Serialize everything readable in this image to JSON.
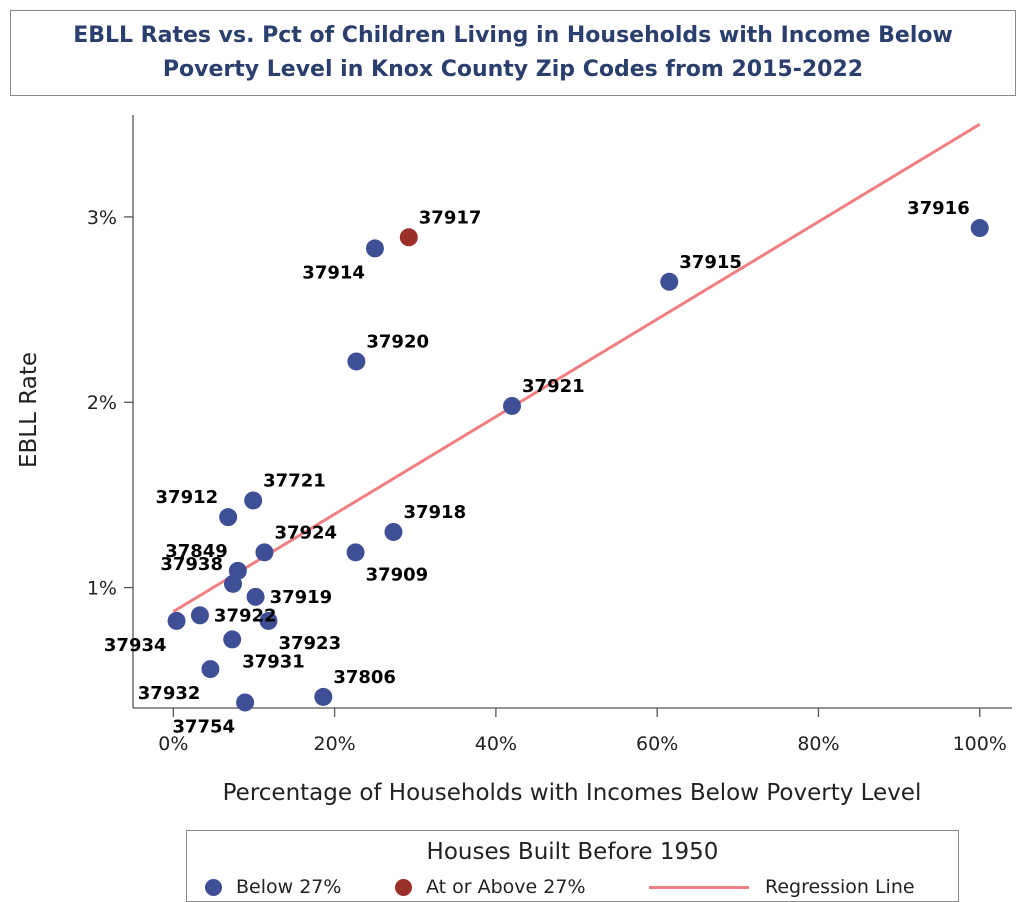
{
  "title": "EBLL Rates vs. Pct of Children Living in Households with Income Below Poverty Level in Knox County Zip Codes from 2015-2022",
  "colors": {
    "below": "#3f4f96",
    "above": "#9b302a",
    "regression": "#f08080",
    "title": "#2b3f6e"
  },
  "legend": {
    "title": "Houses Built Before 1950",
    "below_label": "Below 27%",
    "above_label": "At or Above 27%",
    "regression_label": "Regression Line"
  },
  "chart_data": {
    "type": "scatter",
    "xlabel": "Percentage of Households with Incomes Below Poverty Level",
    "ylabel": "EBLL Rate",
    "xlim": [
      -5,
      104
    ],
    "ylim": [
      0.35,
      3.55
    ],
    "xticks": [
      0,
      20,
      40,
      60,
      80,
      100
    ],
    "xtick_labels": [
      "0%",
      "20%",
      "40%",
      "60%",
      "80%",
      "100%"
    ],
    "yticks": [
      1,
      2,
      3
    ],
    "ytick_labels": [
      "1%",
      "2%",
      "3%"
    ],
    "series": [
      {
        "name": "Below 27%",
        "color": "#3f4f96",
        "points": [
          {
            "zip": "37916",
            "x": 100.0,
            "y": 2.94,
            "pos": "upper-left"
          },
          {
            "zip": "37915",
            "x": 61.5,
            "y": 2.65,
            "pos": "upper-right"
          },
          {
            "zip": "37914",
            "x": 25.0,
            "y": 2.83,
            "pos": "lower-left"
          },
          {
            "zip": "37920",
            "x": 22.7,
            "y": 2.22,
            "pos": "upper-right"
          },
          {
            "zip": "37921",
            "x": 42.0,
            "y": 1.98,
            "pos": "upper-right"
          },
          {
            "zip": "37912",
            "x": 6.8,
            "y": 1.38,
            "pos": "upper-left"
          },
          {
            "zip": "37721",
            "x": 9.9,
            "y": 1.47,
            "pos": "upper-right"
          },
          {
            "zip": "37918",
            "x": 27.3,
            "y": 1.3,
            "pos": "upper-right"
          },
          {
            "zip": "37924",
            "x": 11.3,
            "y": 1.19,
            "pos": "upper-right"
          },
          {
            "zip": "37909",
            "x": 22.6,
            "y": 1.19,
            "pos": "lower-right"
          },
          {
            "zip": "37849",
            "x": 8.0,
            "y": 1.09,
            "pos": "upper-left"
          },
          {
            "zip": "37938",
            "x": 7.4,
            "y": 1.02,
            "pos": "upper-left"
          },
          {
            "zip": "37919",
            "x": 10.2,
            "y": 0.95,
            "pos": "right"
          },
          {
            "zip": "37922",
            "x": 3.3,
            "y": 0.85,
            "pos": "right"
          },
          {
            "zip": "37934",
            "x": 0.4,
            "y": 0.82,
            "pos": "lower-left"
          },
          {
            "zip": "37923",
            "x": 11.8,
            "y": 0.82,
            "pos": "lower-right"
          },
          {
            "zip": "37931",
            "x": 7.3,
            "y": 0.72,
            "pos": "lower-right"
          },
          {
            "zip": "37932",
            "x": 4.6,
            "y": 0.56,
            "pos": "lower-left"
          },
          {
            "zip": "37806",
            "x": 18.6,
            "y": 0.41,
            "pos": "upper-right"
          },
          {
            "zip": "37754",
            "x": 8.9,
            "y": 0.38,
            "pos": "lower-left"
          }
        ]
      },
      {
        "name": "At or Above 27%",
        "color": "#9b302a",
        "points": [
          {
            "zip": "37917",
            "x": 29.2,
            "y": 2.89,
            "pos": "upper-right"
          }
        ]
      }
    ],
    "regression": {
      "name": "Regression Line",
      "x": [
        0,
        100
      ],
      "y": [
        0.87,
        3.5
      ]
    }
  }
}
